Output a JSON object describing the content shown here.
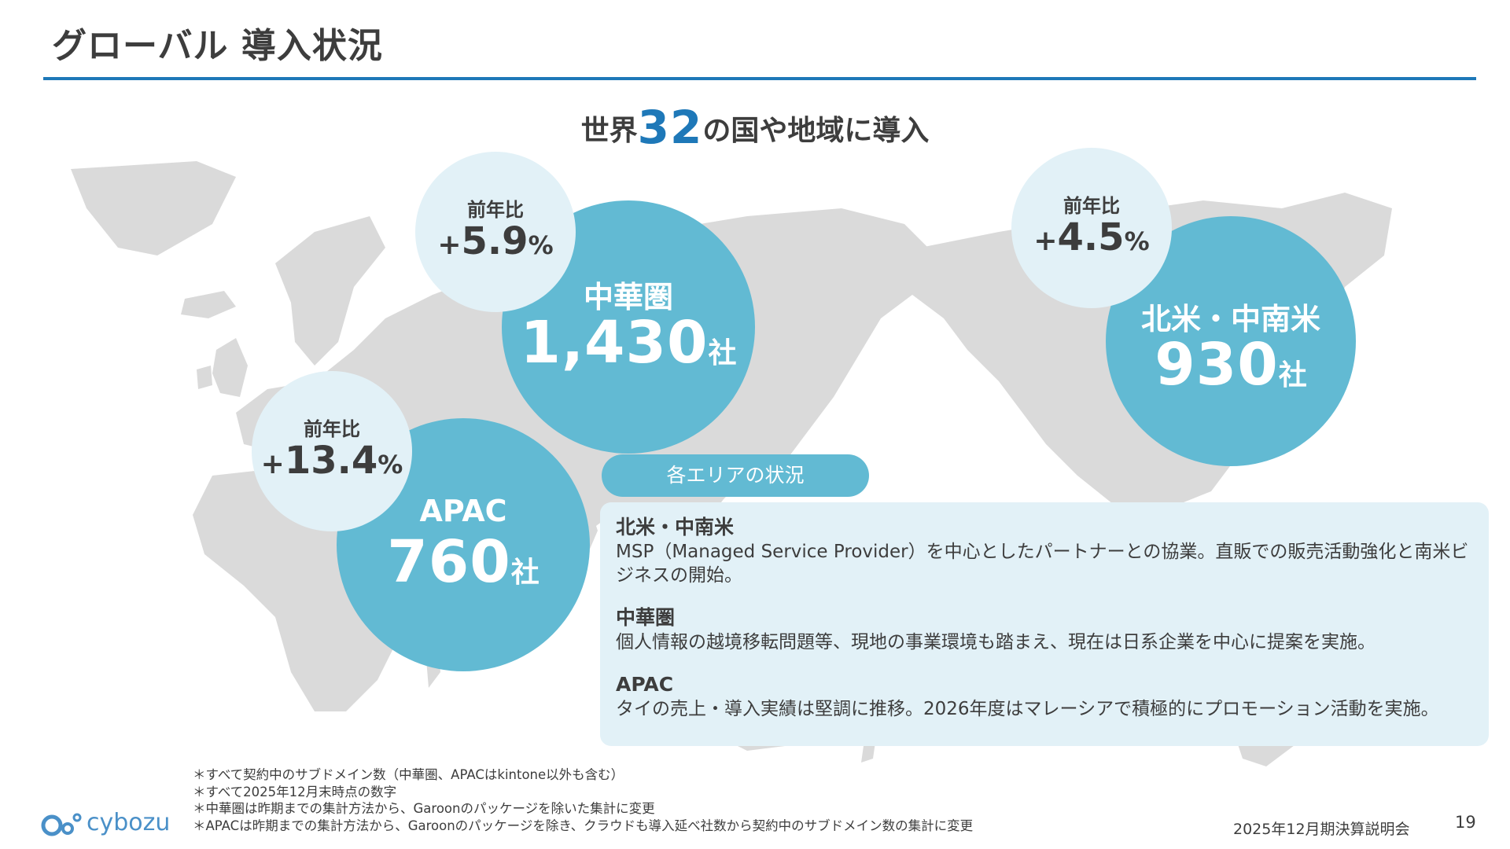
{
  "page": {
    "title": "グローバル 導入状況",
    "number": "19"
  },
  "headline": {
    "prefix": "世界",
    "number": "32",
    "suffix": "の国や地域に導入"
  },
  "regions": {
    "china": {
      "name": "中華圏",
      "count": "1,430",
      "unit": "社",
      "yoy_label": "前年比",
      "yoy_sign": "+",
      "yoy_value": "5.9",
      "yoy_unit": "%"
    },
    "north_america": {
      "name": "北米・中南米",
      "count": "930",
      "unit": "社",
      "yoy_label": "前年比",
      "yoy_sign": "+",
      "yoy_value": "4.5",
      "yoy_unit": "%"
    },
    "apac": {
      "name": "APAC",
      "count": "760",
      "unit": "社",
      "yoy_label": "前年比",
      "yoy_sign": "+",
      "yoy_value": "13.4",
      "yoy_unit": "%"
    }
  },
  "status": {
    "pill_label": "各エリアの状況",
    "sections": [
      {
        "heading": "北米・中南米",
        "body": "MSP（Managed Service Provider）を中心としたパートナーとの協業。直販での販売活動強化と南米ビジネスの開始。"
      },
      {
        "heading": "中華圏",
        "body": "個人情報の越境移転問題等、現地の事業環境も踏まえ、現在は日系企業を中心に提案を実施。"
      },
      {
        "heading": "APAC",
        "body": "タイの売上・導入実績は堅調に推移。2026年度はマレーシアで積極的にプロモーション活動を実施。"
      }
    ]
  },
  "footnotes": [
    "＊すべて契約中のサブドメイン数（中華圏、APACはkintone以外も含む）",
    "＊すべて2025年12月末時点の数字",
    "＊中華圏は昨期までの集計方法から、Garoonのパッケージを除いた集計に変更",
    "＊APACは昨期までの集計方法から、Garoonのパッケージを除き、クラウドも導入延べ社数から契約中のサブドメイン数の集計に変更"
  ],
  "footer": {
    "logo_text": "cybozu",
    "event": "2025年12月期決算説明会"
  },
  "colors": {
    "accent": "#1e78b8",
    "region_circle": "#62bad3",
    "yoy_circle": "#e2f1f7",
    "map": "#dadada",
    "text": "#3d3d3d"
  }
}
